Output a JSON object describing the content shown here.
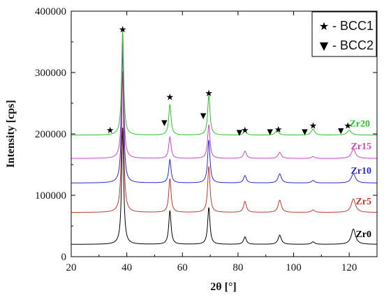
{
  "chart_data": {
    "type": "line",
    "xlabel": "2θ [°]",
    "ylabel": "Intensity [cps]",
    "xlim": [
      20,
      130
    ],
    "ylim": [
      0,
      400000
    ],
    "xticks": [
      20,
      40,
      60,
      80,
      100,
      120
    ],
    "yticks": [
      0,
      100000,
      200000,
      300000,
      400000
    ],
    "xtick_labels": [
      "20",
      "40",
      "60",
      "80",
      "100",
      "120"
    ],
    "ytick_labels": [
      "0",
      "100000",
      "200000",
      "300000",
      "400000"
    ],
    "grid": false,
    "legend_position": "top-right",
    "legend": [
      {
        "marker": "★",
        "label": "- BCC1"
      },
      {
        "marker": "▼",
        "label": "- BCC2"
      }
    ],
    "series": [
      {
        "name": "Zr0",
        "color": "#000000",
        "baseline": 20000,
        "label_at": [
          128,
          32000
        ],
        "peaks": [
          [
            38.5,
            190000,
            0.45
          ],
          [
            55.5,
            55000,
            0.5
          ],
          [
            69.5,
            60000,
            0.5
          ],
          [
            82.5,
            12000,
            0.6
          ],
          [
            95,
            15000,
            0.7
          ],
          [
            107,
            4000,
            0.7
          ],
          [
            121.5,
            25000,
            0.9
          ]
        ]
      },
      {
        "name": "Zr5",
        "color": "#c0392b",
        "baseline": 72000,
        "label_at": [
          128,
          85000
        ],
        "peaks": [
          [
            38.5,
            230000,
            0.45
          ],
          [
            55.5,
            55000,
            0.5
          ],
          [
            69.5,
            75000,
            0.5
          ],
          [
            82.5,
            18000,
            0.6
          ],
          [
            95,
            20000,
            0.7
          ],
          [
            107,
            4000,
            0.7
          ],
          [
            121.5,
            22000,
            0.9
          ]
        ]
      },
      {
        "name": "Zr10",
        "color": "#2a2ad4",
        "baseline": 120000,
        "label_at": [
          128,
          135000
        ],
        "peaks": [
          [
            38.5,
            215000,
            0.45
          ],
          [
            55.5,
            38000,
            0.5
          ],
          [
            69.5,
            70000,
            0.5
          ],
          [
            82.5,
            12000,
            0.6
          ],
          [
            95,
            15000,
            0.7
          ],
          [
            107,
            4000,
            0.7
          ],
          [
            121.5,
            15000,
            0.9
          ]
        ]
      },
      {
        "name": "Zr15",
        "color": "#cc44cc",
        "baseline": 160000,
        "label_at": [
          128,
          175000
        ],
        "peaks": [
          [
            38.5,
            190000,
            0.45
          ],
          [
            55.5,
            35000,
            0.5
          ],
          [
            69.5,
            55000,
            0.5
          ],
          [
            82.5,
            12000,
            0.6
          ],
          [
            95,
            10000,
            0.7
          ],
          [
            107,
            3000,
            0.7
          ],
          [
            121.5,
            15000,
            0.9
          ]
        ]
      },
      {
        "name": "Zr20",
        "color": "#2ec02e",
        "baseline": 198000,
        "label_at": [
          127.5,
          212000
        ],
        "peaks": [
          [
            38.5,
            170000,
            0.45
          ],
          [
            55.5,
            50000,
            0.5
          ],
          [
            69.5,
            65000,
            0.5
          ],
          [
            82.5,
            7000,
            0.6
          ],
          [
            94,
            8000,
            0.7
          ],
          [
            107,
            10000,
            0.7
          ],
          [
            120,
            8000,
            0.9
          ]
        ]
      }
    ],
    "annotations": [
      {
        "marker": "★",
        "x": 34,
        "y": 207000
      },
      {
        "marker": "★",
        "x": 38.5,
        "y": 371000
      },
      {
        "marker": "★",
        "x": 55.5,
        "y": 261000
      },
      {
        "marker": "★",
        "x": 69.5,
        "y": 267000
      },
      {
        "marker": "★",
        "x": 82.5,
        "y": 207000
      },
      {
        "marker": "★",
        "x": 94.5,
        "y": 208000
      },
      {
        "marker": "★",
        "x": 107,
        "y": 214000
      },
      {
        "marker": "★",
        "x": 119.5,
        "y": 214000
      },
      {
        "marker": "▼",
        "x": 53.5,
        "y": 220000
      },
      {
        "marker": "▼",
        "x": 67.5,
        "y": 231000
      },
      {
        "marker": "▼",
        "x": 80.5,
        "y": 204000
      },
      {
        "marker": "▼",
        "x": 91.5,
        "y": 205000
      },
      {
        "marker": "▼",
        "x": 104,
        "y": 205000
      },
      {
        "marker": "▼",
        "x": 117,
        "y": 207000
      }
    ]
  }
}
